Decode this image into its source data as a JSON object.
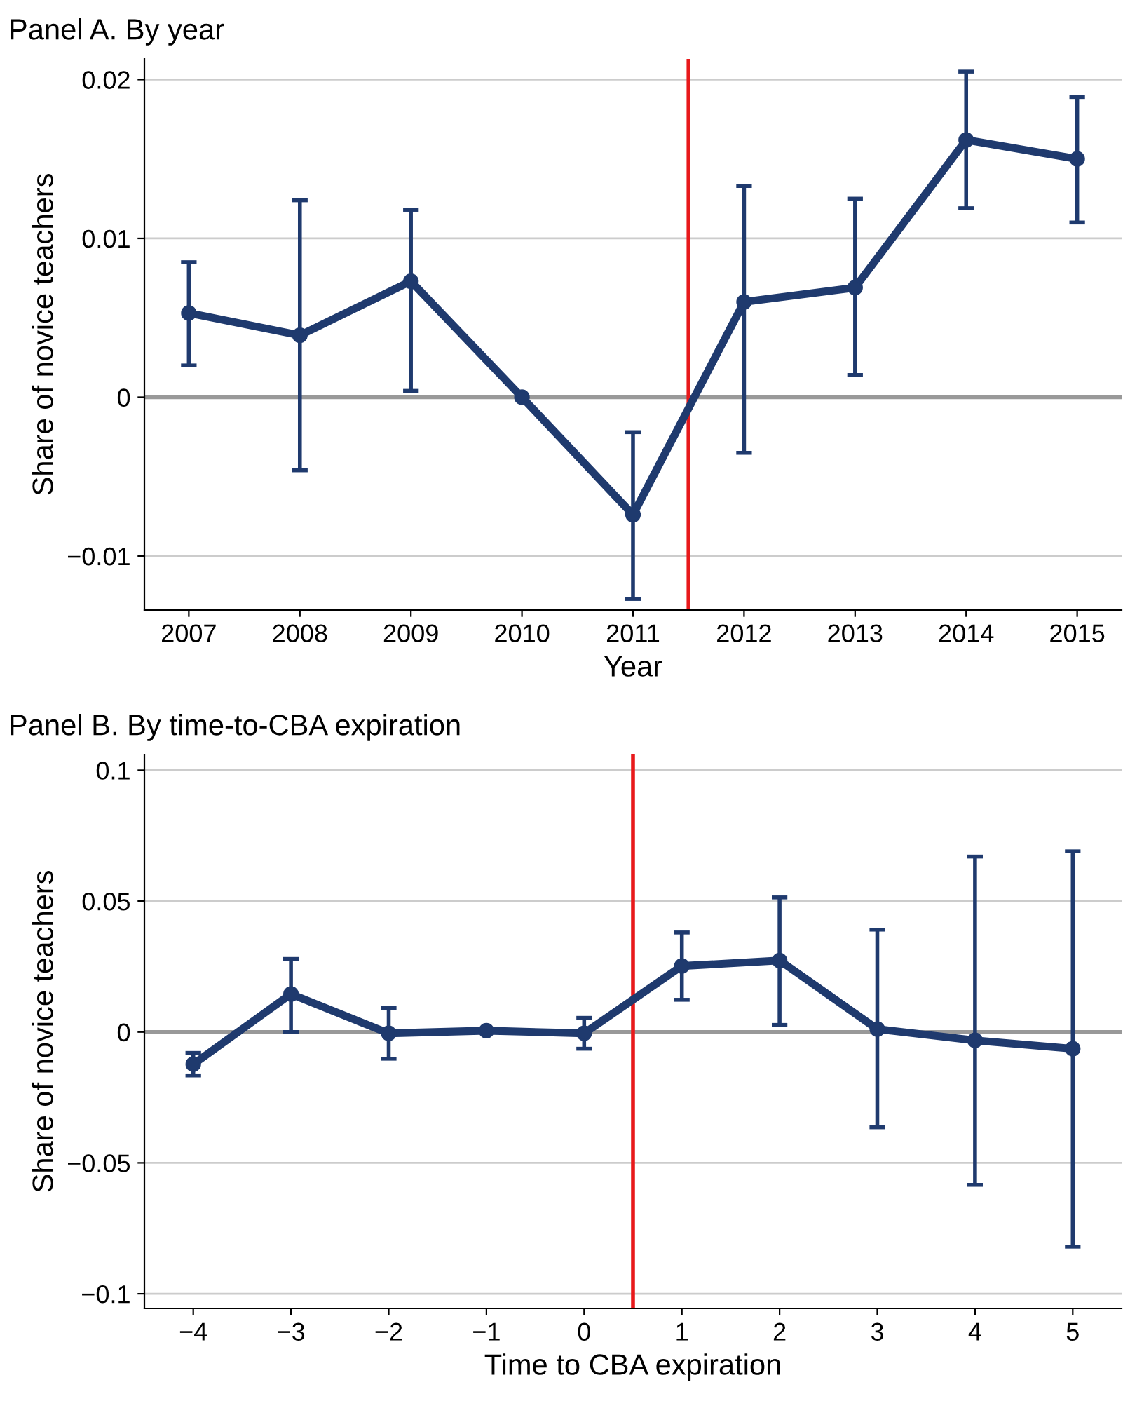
{
  "chart_data": [
    {
      "type": "line",
      "title": "Panel A. By year",
      "xlabel": "Year",
      "ylabel": "Share of novice teachers",
      "x": [
        2007,
        2008,
        2009,
        2010,
        2011,
        2012,
        2013,
        2014,
        2015
      ],
      "series": [
        {
          "color": "#1f3a6e",
          "values": [
            0.0053,
            0.0039,
            0.0073,
            0,
            -0.0074,
            0.006,
            0.0069,
            0.0162,
            0.015
          ],
          "errors": [
            [
              0.002,
              0.0085
            ],
            [
              -0.0046,
              0.0124
            ],
            [
              0.0004,
              0.0118
            ],
            null,
            [
              -0.0127,
              -0.0022
            ],
            [
              -0.0035,
              0.0133
            ],
            [
              0.0014,
              0.0125
            ],
            [
              0.0119,
              0.0205
            ],
            [
              0.011,
              0.0189
            ]
          ]
        }
      ],
      "xlim": [
        2006.6,
        2015.4
      ],
      "xticks": [
        2007,
        2008,
        2009,
        2010,
        2011,
        2012,
        2013,
        2014,
        2015
      ],
      "ylim": [
        -0.0134,
        0.0213
      ],
      "yticks": [
        {
          "value": -0.01,
          "label": "−0.01"
        },
        0,
        0.01,
        0.02
      ],
      "ref_lines": [
        {
          "axis": "y",
          "value": 0,
          "color": "#999999"
        },
        {
          "axis": "x",
          "value": 2011.5,
          "color": "#e8191b"
        }
      ],
      "grid": "y",
      "marker": "circle",
      "line_style": "solid"
    },
    {
      "type": "line",
      "title": "Panel B. By time-to-CBA expiration",
      "xlabel": "Time to CBA expiration",
      "ylabel": "Share of novice teachers",
      "x": [
        -4,
        -3,
        -2,
        -1,
        0,
        1,
        2,
        3,
        4,
        5
      ],
      "series": [
        {
          "color": "#1f3a6e",
          "values": [
            -0.0123,
            0.0145,
            -0.0005,
            0.0005,
            -0.0005,
            0.0252,
            0.0273,
            0.0011,
            -0.0032,
            -0.0064
          ],
          "errors": [
            [
              -0.0166,
              -0.008
            ],
            [
              0,
              0.0279
            ],
            [
              -0.0102,
              0.0091
            ],
            null,
            [
              -0.0064,
              0.0054
            ],
            [
              0.0123,
              0.038
            ],
            [
              0.0027,
              0.0514
            ],
            [
              -0.0364,
              0.0391
            ],
            [
              -0.0584,
              0.067
            ],
            [
              -0.082,
              0.069
            ]
          ]
        }
      ],
      "xlim": [
        -4.5,
        5.5
      ],
      "xticks": [
        {
          "value": -4,
          "label": "−4"
        },
        {
          "value": -3,
          "label": "−3"
        },
        {
          "value": -2,
          "label": "−2"
        },
        {
          "value": -1,
          "label": "−1"
        },
        0,
        1,
        2,
        3,
        4,
        5
      ],
      "ylim": [
        -0.1056,
        0.106
      ],
      "yticks": [
        {
          "value": -0.1,
          "label": "−0.1"
        },
        {
          "value": -0.05,
          "label": "−0.05"
        },
        0,
        0.05,
        0.1
      ],
      "ref_lines": [
        {
          "axis": "y",
          "value": 0,
          "color": "#999999"
        },
        {
          "axis": "x",
          "value": 0.5,
          "color": "#e8191b"
        }
      ],
      "grid": "y",
      "marker": "circle",
      "line_style": "solid"
    }
  ]
}
